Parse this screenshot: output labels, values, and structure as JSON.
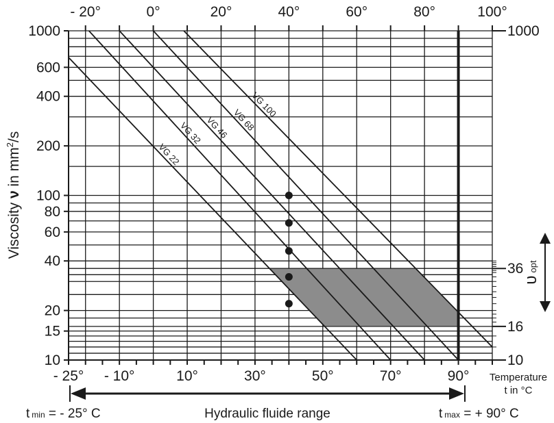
{
  "chart_data": {
    "type": "line",
    "y_axis": {
      "label_prefix": "Viscosity ",
      "label_symbol": "ν",
      "label_suffix": " in mm",
      "label_sup": "2",
      "label_end": "/s",
      "scale": "log",
      "range": [
        10,
        1000
      ],
      "tick_labels": [
        "1000",
        "600",
        "400",
        "200",
        "100",
        "80",
        "60",
        "40",
        "20",
        "15",
        "10"
      ],
      "right_tick_labels": [
        "1000",
        "36",
        "16",
        "10"
      ]
    },
    "x_axis": {
      "label_line1": "Temperature",
      "label_line2": "t in °C",
      "range": [
        -25,
        100
      ],
      "bottom_tick_labels": [
        {
          "value": -25,
          "text": "- 25°"
        },
        {
          "value": -10,
          "text": "- 10°"
        },
        {
          "value": 10,
          "text": "10°"
        },
        {
          "value": 30,
          "text": "30°"
        },
        {
          "value": 50,
          "text": "50°"
        },
        {
          "value": 70,
          "text": "70°"
        },
        {
          "value": 90,
          "text": "90°"
        }
      ],
      "top_tick_labels": [
        {
          "value": -20,
          "text": "- 20°"
        },
        {
          "value": 0,
          "text": "0°"
        },
        {
          "value": 20,
          "text": "20°"
        },
        {
          "value": 40,
          "text": "40°"
        },
        {
          "value": 60,
          "text": "60°"
        },
        {
          "value": 80,
          "text": "80°"
        },
        {
          "value": 100,
          "text": "100°"
        }
      ]
    },
    "series": [
      {
        "name": "VG 22",
        "points": [
          [
            -28,
            800
          ],
          [
            60,
            10
          ]
        ]
      },
      {
        "name": "VG 32",
        "points": [
          [
            -19,
            1000
          ],
          [
            70,
            10
          ]
        ]
      },
      {
        "name": "VG 46",
        "points": [
          [
            -10,
            1000
          ],
          [
            80,
            10
          ]
        ]
      },
      {
        "name": "VG 68",
        "points": [
          [
            0,
            1000
          ],
          [
            90,
            10
          ]
        ]
      },
      {
        "name": "VG 100",
        "points": [
          [
            9,
            1000
          ],
          [
            100,
            12
          ]
        ]
      }
    ],
    "markers_at_40C": [
      22,
      32,
      46,
      68,
      100
    ],
    "optimal_band": {
      "label": "υ",
      "label_sub": "opt",
      "min": 16,
      "max": 36,
      "color": "#8c8c8c"
    },
    "t_max_line": 90,
    "annotations": {
      "t_min_prefix": "t",
      "t_min_sub": "min",
      "t_min_value": " = - 25° C",
      "range_label": "Hydraulic fluide range",
      "t_max_prefix": "t",
      "t_max_sub": "max",
      "t_max_value": " = + 90° C"
    },
    "grid": true
  }
}
